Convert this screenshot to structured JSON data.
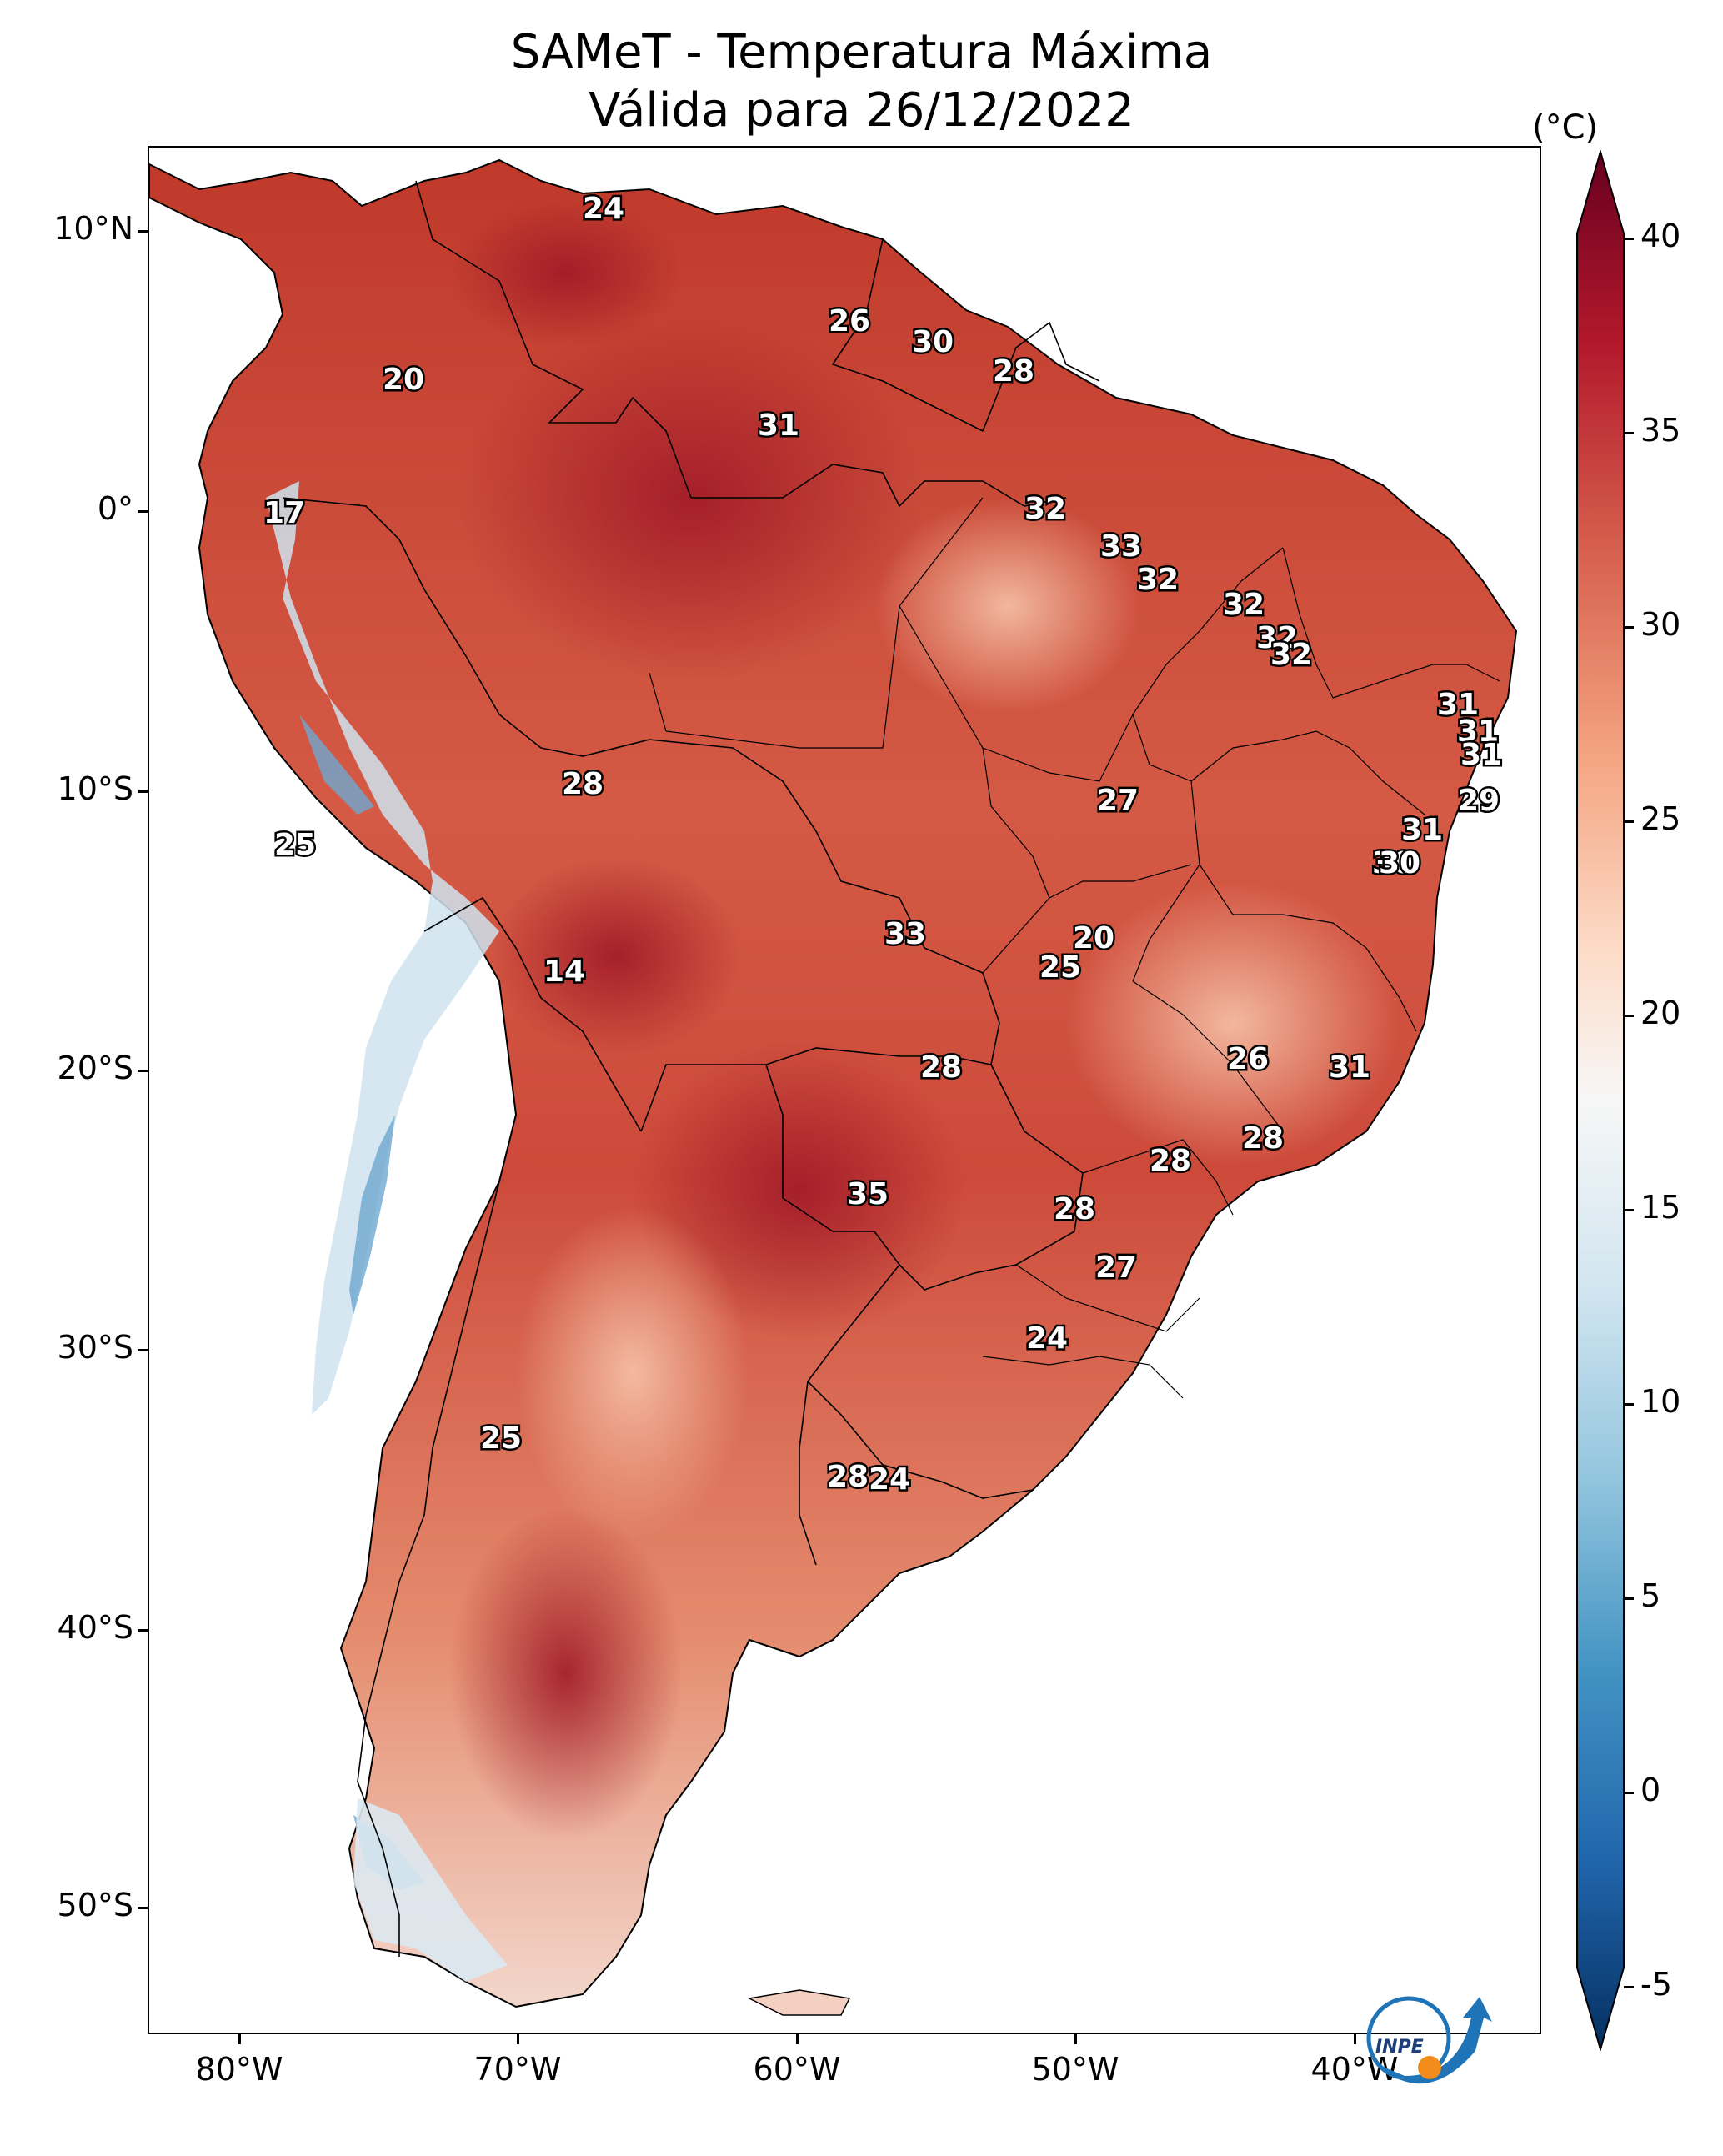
{
  "title": {
    "line1": "SAMeT - Temperatura Máxima",
    "line2": "Válida para 26/12/2022"
  },
  "lat_labels": [
    "10°N",
    "0°",
    "10°S",
    "20°S",
    "30°S",
    "40°S",
    "50°S"
  ],
  "lon_labels": [
    "80°W",
    "70°W",
    "60°W",
    "50°W",
    "40°W"
  ],
  "colorbar": {
    "unit": "(°C)",
    "ticks": [
      "40",
      "35",
      "30",
      "25",
      "20",
      "15",
      "10",
      "5",
      "0",
      "-5"
    ],
    "colors": [
      "#67001f",
      "#b2182b",
      "#d6604d",
      "#f4a582",
      "#fddbc7",
      "#f7f7f7",
      "#d1e5f0",
      "#92c5de",
      "#4393c3",
      "#2166ac",
      "#053061"
    ]
  },
  "contour_labels": [
    "24",
    "26",
    "30",
    "28",
    "20",
    "31",
    "17",
    "32",
    "33",
    "32",
    "32",
    "32",
    "32",
    "31",
    "31",
    "31",
    "29",
    "30",
    "28",
    "27",
    "31",
    "25",
    "30",
    "14",
    "33",
    "20",
    "25",
    "26",
    "28",
    "31",
    "28",
    "28",
    "35",
    "28",
    "27",
    "24",
    "25",
    "28",
    "24"
  ],
  "logo": {
    "text": "INPE"
  }
}
